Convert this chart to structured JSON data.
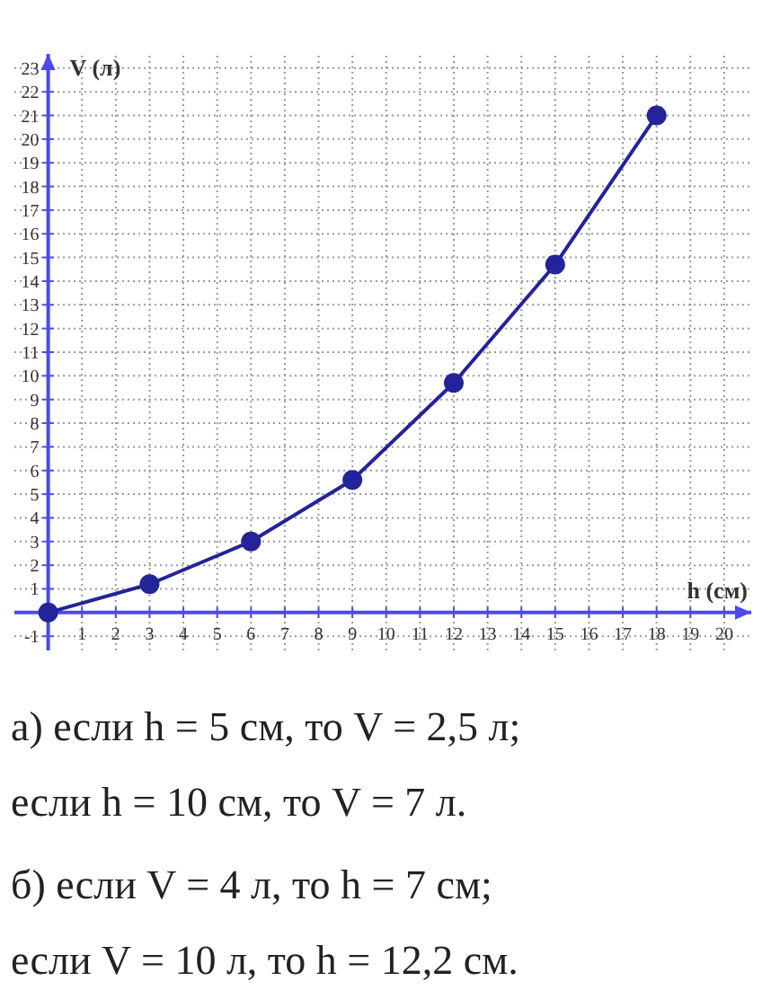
{
  "chart_data": {
    "type": "line",
    "xlabel": "h (см)",
    "ylabel": "V (л)",
    "x": [
      0,
      3,
      6,
      9,
      12,
      15,
      18
    ],
    "series": [
      {
        "color": "#23239a",
        "values": [
          0,
          1.2,
          3,
          5.6,
          9.7,
          14.7,
          21
        ]
      }
    ],
    "xlim": [
      -1,
      20.8
    ],
    "ylim": [
      -1.6,
      23.6
    ],
    "xticks": [
      1,
      2,
      3,
      4,
      5,
      6,
      7,
      8,
      9,
      10,
      11,
      12,
      13,
      14,
      15,
      16,
      17,
      18,
      19,
      20
    ],
    "yticks": [
      -1,
      1,
      2,
      3,
      4,
      5,
      6,
      7,
      8,
      9,
      10,
      11,
      12,
      13,
      14,
      15,
      16,
      17,
      18,
      19,
      20,
      21,
      22,
      23
    ],
    "grid": true,
    "marker": "circle",
    "line_style": "solid",
    "annotations": [
      "а) если h = 5 см, то V = 2,5 л;",
      "если h = 10 см, то V = 7 л.",
      "б) если V = 4 л, то h = 7 см;",
      "если V = 10 л, то h = 12,2 см."
    ]
  }
}
